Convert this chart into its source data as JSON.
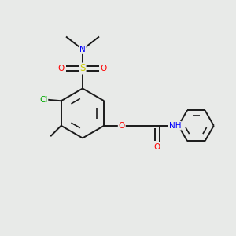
{
  "bg_color": "#e8eae8",
  "bond_color": "#1a1a1a",
  "bond_width": 1.4,
  "atom_colors": {
    "C": "#1a1a1a",
    "H": "#909090",
    "N": "#0000ff",
    "O": "#ff0000",
    "S": "#cccc00",
    "Cl": "#00aa00"
  },
  "font_size": 7.5,
  "figsize": [
    3.0,
    3.0
  ],
  "dpi": 100,
  "xlim": [
    0,
    10
  ],
  "ylim": [
    0,
    10
  ]
}
